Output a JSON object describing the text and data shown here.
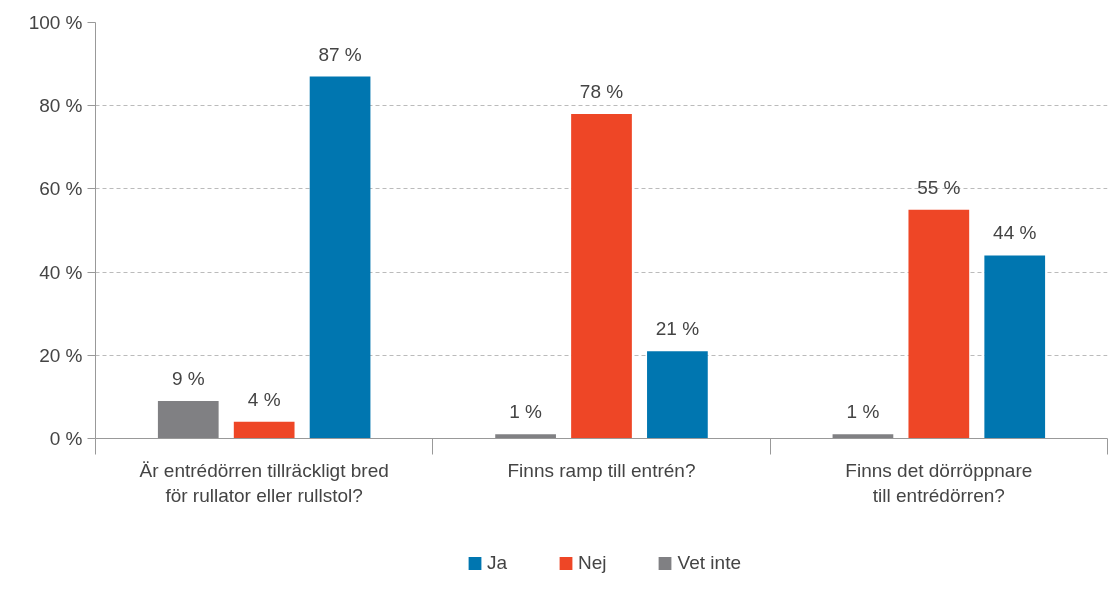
{
  "chart_data": {
    "type": "bar",
    "categories": [
      "Är entrédörren tillräckligt bred\nför rullator eller rullstol?",
      "Finns ramp till entrén?",
      "Finns det dörröppnare\ntill entrédörren?"
    ],
    "series": [
      {
        "name": "Ja",
        "color": "#0076b0",
        "values": [
          87,
          21,
          44
        ],
        "value_labels": [
          "87 %",
          "21 %",
          "44 %"
        ]
      },
      {
        "name": "Nej",
        "color": "#ee4626",
        "values": [
          4,
          78,
          55
        ],
        "value_labels": [
          "4 %",
          "78 %",
          "55 %"
        ]
      },
      {
        "name": "Vet inte",
        "color": "#808083",
        "values": [
          9,
          1,
          1
        ],
        "value_labels": [
          "9 %",
          "1 %",
          "1 %"
        ]
      }
    ],
    "ylim": [
      0,
      100
    ],
    "yticks": [
      {
        "value": 0,
        "label": "0 %"
      },
      {
        "value": 20,
        "label": "20 %"
      },
      {
        "value": 40,
        "label": "40 %"
      },
      {
        "value": 60,
        "label": "60 %"
      },
      {
        "value": 80,
        "label": "80 %"
      },
      {
        "value": 100,
        "label": "100 %"
      }
    ],
    "grid": "y",
    "legend": "bottom"
  }
}
